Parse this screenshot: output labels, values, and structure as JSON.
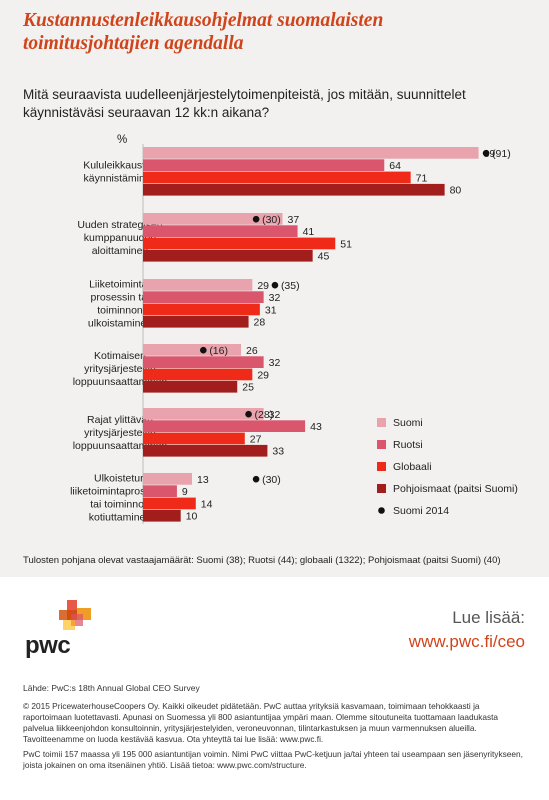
{
  "title": "Kustannustenleikkausohjelmat suomalaisten toimitusjohtajien agendalla",
  "question": "Mitä seuraavista uudelleenjärjestelytoimenpiteistä, jos mitään, suunnittelet käynnistäväsi seuraavan 12 kk:n aikana?",
  "footnote": "Tulosten pohjana olevat vastaajamäärät: Suomi (38); Ruotsi (44); globaali (1322); Pohjoismaat (paitsi Suomi) (40)",
  "learn_more": {
    "label": "Lue lisää:",
    "url": "www.pwc.fi/ceo"
  },
  "brand": {
    "name": "pwc"
  },
  "source": "Lähde: PwC:s 18th Annual Global CEO Survey",
  "legal_1": "© 2015 PricewaterhouseCoopers Oy. Kaikki oikeudet pidätetään. PwC auttaa yrityksiä kasvamaan, toimimaan tehokkaasti ja raportoimaan luotettavasti. Apunasi on Suomessa yli 800 asiantuntijaa ympäri maan. Olemme sitoutuneita tuottamaan laadukasta palvelua liikkeenjohdon konsultoinnin, yritysjärjestelyiden, veroneuvonnan, tilintarkastuksen ja muun varmennuksen alueilla. Tavoitteenamme on luoda kestävää kasvua. Ota yhteyttä tai lue lisää: www.pwc.fi.",
  "legal_2": "PwC toimii 157 maassa yli 195 000 asiantuntijan voimin. Nimi PwC viittaa PwC-ketjuun ja/tai yhteen tai useampaan sen jäsenyritykseen, joista jokainen on oma itsenäinen yhtiö. Lisää tietoa: www.pwc.com/structure.",
  "colors": {
    "background": "#f2f1ef",
    "accent": "#d0441b",
    "suomi": "#e8a3ad",
    "ruotsi": "#d9566d",
    "globaali": "#f02a18",
    "pohjoismaat": "#a11e1c",
    "marker": "#111111"
  },
  "chart_data": {
    "type": "bar",
    "orientation": "horizontal",
    "unit_label": "%",
    "categories": [
      [
        "Kululeikkausten",
        "käynnistäminen"
      ],
      [
        "Uuden strategisen",
        "kumppanuuden",
        "aloittaminen"
      ],
      [
        "Liiketoiminta-",
        "prosessin tai",
        "toiminnon",
        "ulkoistaminen"
      ],
      [
        "Kotimaisen",
        "yritysjärjestelyn",
        "loppuunsaattaminen"
      ],
      [
        "Rajat ylittävän",
        "yritysjärjestelyn",
        "loppuunsaattaminen"
      ],
      [
        "Ulkoistetun",
        "liiketoimintaprosessin",
        "tai toiminnon",
        "kotiuttaminen"
      ]
    ],
    "series": [
      {
        "name": "Suomi",
        "values": [
          89,
          37,
          29,
          26,
          32,
          13
        ]
      },
      {
        "name": "Ruotsi",
        "values": [
          64,
          41,
          32,
          32,
          43,
          9
        ]
      },
      {
        "name": "Globaali",
        "values": [
          71,
          51,
          31,
          29,
          27,
          14
        ]
      },
      {
        "name": "Pohjoismaat (paitsi Suomi)",
        "values": [
          80,
          45,
          28,
          25,
          33,
          10
        ]
      }
    ],
    "markers": {
      "name": "Suomi 2014",
      "values": [
        91,
        30,
        35,
        16,
        28,
        30
      ],
      "labels": [
        "(91)",
        "(30)",
        "(35)",
        "(16)",
        "(28)",
        "(30)"
      ]
    },
    "xlim": [
      0,
      100
    ],
    "legend_position": "right"
  }
}
